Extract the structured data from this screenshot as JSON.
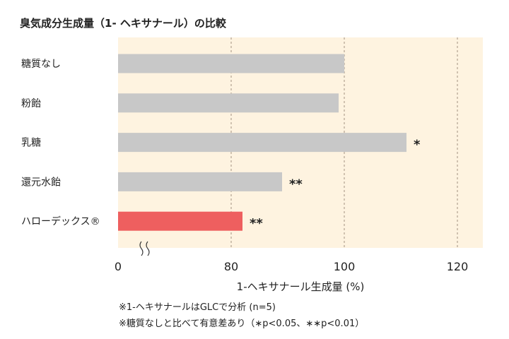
{
  "chart_data": {
    "type": "bar",
    "orientation": "horizontal",
    "title": "臭気成分生成量（1- ヘキサナール）の比較",
    "xlabel": "1-ヘキサナール生成量 (%)",
    "ylabel": "",
    "categories": [
      "糖質なし",
      "粉飴",
      "乳糖",
      "還元水飴",
      "ハローデックス®"
    ],
    "values": [
      100,
      99,
      111,
      89,
      82
    ],
    "significance": [
      "",
      "",
      "*",
      "**",
      "**"
    ],
    "colors": [
      "#c8c8c8",
      "#c8c8c8",
      "#c8c8c8",
      "#c8c8c8",
      "#ee5f5f"
    ],
    "xticks": [
      0,
      80,
      100,
      120
    ],
    "xlim": [
      80,
      124.5
    ],
    "axis_break": "0-80",
    "gridlines": [
      80,
      100,
      120
    ],
    "background": "#fef3e0",
    "notes": [
      "※1-ヘキサナールはGLCで分析 (n=5)",
      "※糖質なしと比べて有意差あり（∗p<0.05、∗∗p<0.01）"
    ]
  }
}
